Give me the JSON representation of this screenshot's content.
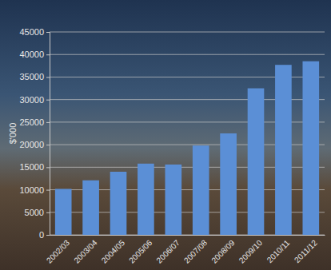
{
  "chart_data": {
    "type": "bar",
    "y_label": "$'000",
    "categories": [
      "2002/03",
      "2003/04",
      "2004/05",
      "2005/06",
      "2006/07",
      "2007/08",
      "2008/09",
      "2009/10",
      "2010/11",
      "2011/12"
    ],
    "values": [
      10200,
      12100,
      14000,
      15800,
      15600,
      19800,
      22500,
      32500,
      37700,
      38500
    ],
    "color": "#5b8fd6",
    "ylim": [
      0,
      45000
    ],
    "yticks": [
      0,
      5000,
      10000,
      15000,
      20000,
      25000,
      30000,
      35000,
      40000,
      45000
    ],
    "grid": true
  }
}
